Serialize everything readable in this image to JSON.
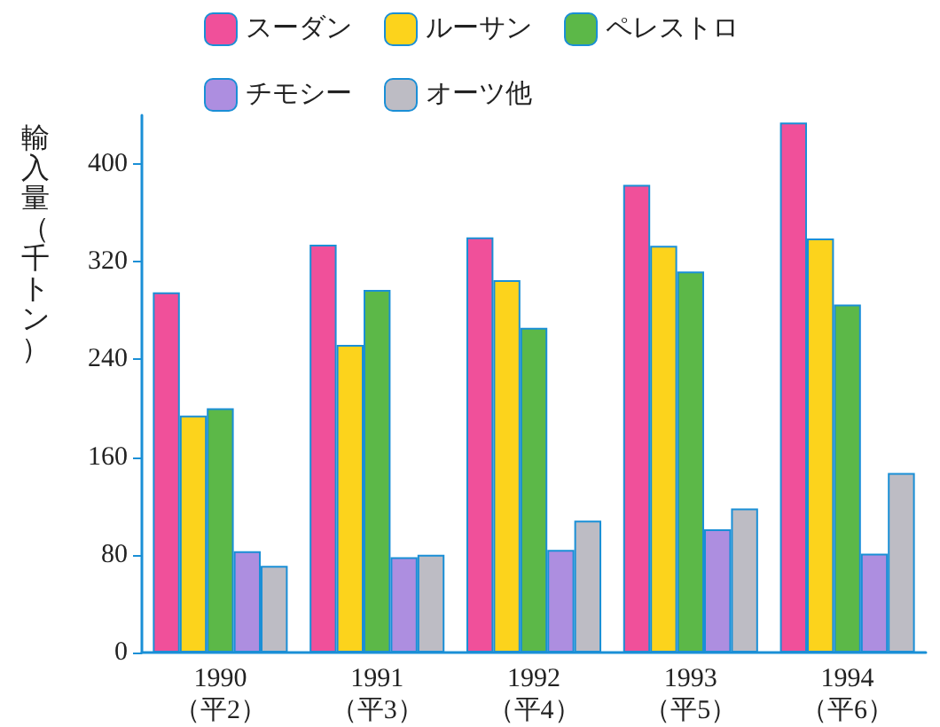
{
  "chart_data": {
    "type": "bar",
    "ylabel": "輸入量（千トン）",
    "categories": [
      "1990\n（平2）",
      "1991\n（平3）",
      "1992\n（平4）",
      "1993\n（平5）",
      "1994\n（平6）"
    ],
    "series": [
      {
        "name": "スーダン",
        "color": "#f0509a",
        "values": [
          295,
          334,
          340,
          383,
          434
        ]
      },
      {
        "name": "ルーサン",
        "color": "#fcd31c",
        "values": [
          194,
          252,
          305,
          333,
          339
        ]
      },
      {
        "name": "ペレストロ",
        "color": "#5cb848",
        "values": [
          200,
          297,
          266,
          312,
          285
        ]
      },
      {
        "name": "チモシー",
        "color": "#ad8ee0",
        "values": [
          83,
          78,
          84,
          101,
          81
        ]
      },
      {
        "name": "オーツ他",
        "color": "#bdbcc4",
        "values": [
          71,
          80,
          108,
          118,
          147
        ]
      }
    ],
    "ylim": [
      0,
      440
    ],
    "yticks": [
      0,
      80,
      160,
      240,
      320,
      400
    ],
    "grid": false,
    "legend": "top"
  }
}
